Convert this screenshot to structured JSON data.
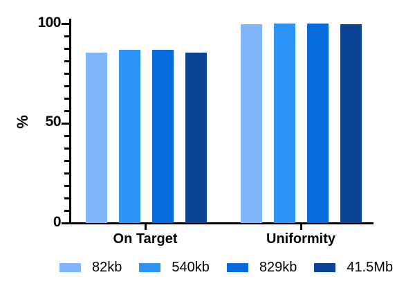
{
  "chart_data": {
    "type": "bar",
    "title": "",
    "xlabel": "",
    "ylabel": "%",
    "categories": [
      "On Target",
      "Uniformity"
    ],
    "series": [
      {
        "name": "82kb",
        "color": "#7FB5F9",
        "values": [
          85.3,
          99.4
        ]
      },
      {
        "name": "540kb",
        "color": "#2E93F8",
        "values": [
          86.6,
          99.9
        ]
      },
      {
        "name": "829kb",
        "color": "#0669DC",
        "values": [
          86.8,
          100.0
        ]
      },
      {
        "name": "41.5Mb",
        "color": "#0B4495",
        "values": [
          85.4,
          99.5
        ]
      }
    ],
    "ylim": [
      0,
      100
    ],
    "yticks": [
      "0",
      "50",
      "100"
    ],
    "ytick_values": [
      0,
      50,
      100
    ],
    "minor_tick_step": 6.25,
    "grid": false,
    "legend_position": "bottom",
    "axis_color": "#000000",
    "background_color": "#FFFFFF"
  }
}
